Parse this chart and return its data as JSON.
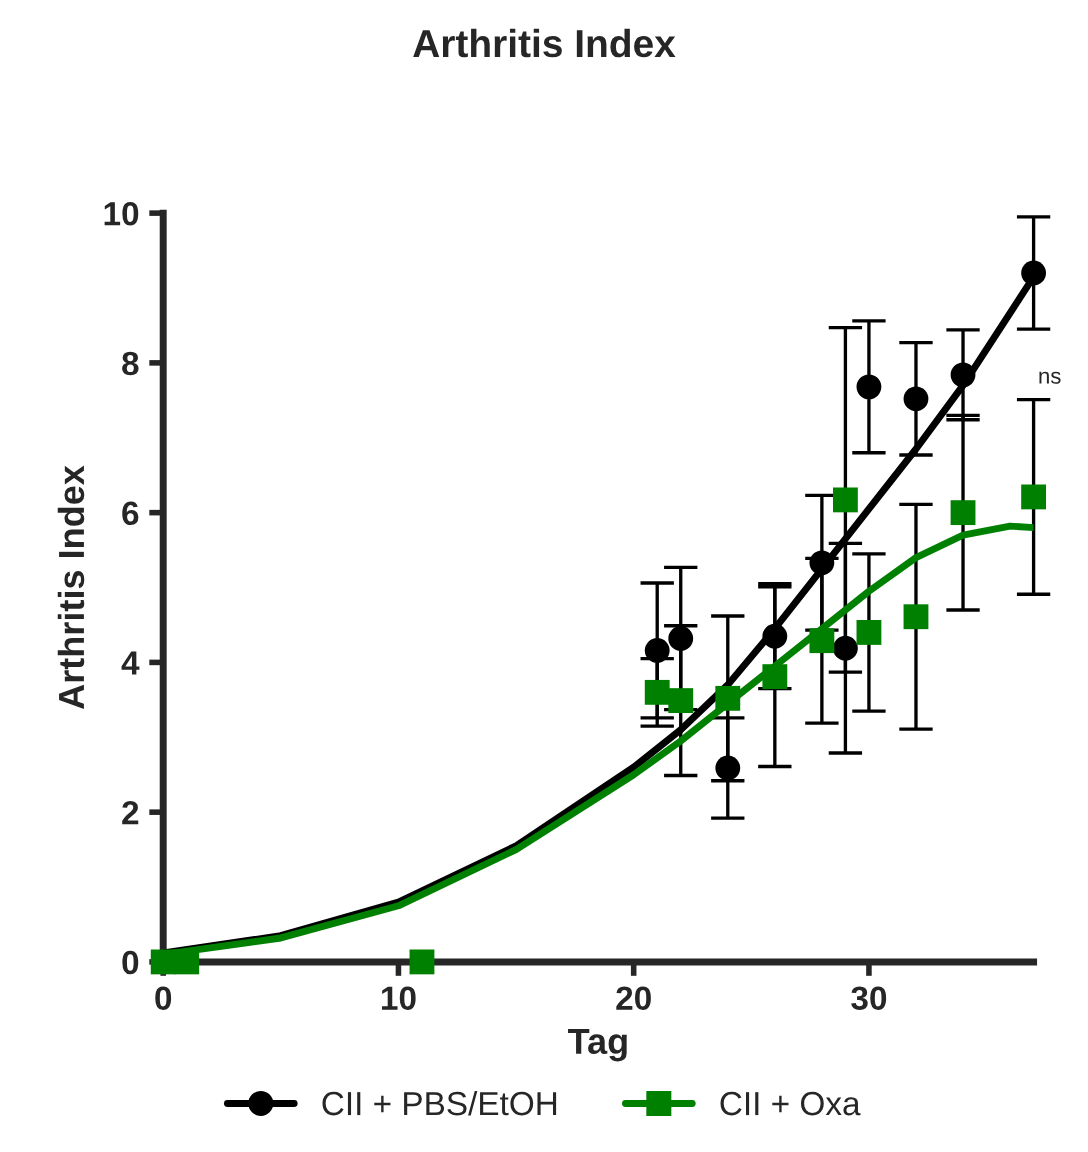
{
  "chart_data": {
    "type": "scatter",
    "title": "Arthritis Index",
    "xlabel": "Tag",
    "ylabel": "Arthritis Index",
    "xlim": [
      0,
      37
    ],
    "ylim": [
      0,
      10
    ],
    "xticks": [
      0,
      10,
      20,
      30
    ],
    "yticks": [
      0,
      2,
      4,
      6,
      8,
      10
    ],
    "grid": false,
    "legend": "bottom",
    "annotations": [
      "ns"
    ],
    "series": [
      {
        "name": "CII + PBS/EtOH",
        "color": "#000000",
        "marker": "circle",
        "x": [
          21,
          22,
          24,
          26,
          28,
          29,
          30,
          32,
          34,
          37
        ],
        "values": [
          4.16,
          4.32,
          2.59,
          4.35,
          5.33,
          4.19,
          7.68,
          7.52,
          7.84,
          9.2
        ],
        "errors": [
          0.9,
          0.95,
          0.67,
          0.7,
          0.9,
          1.4,
          0.88,
          0.75,
          0.6,
          0.75
        ]
      },
      {
        "name": "CII + Oxa",
        "color": "#008000",
        "marker": "square",
        "x": [
          0,
          1,
          11,
          21,
          22,
          24,
          26,
          28,
          29,
          30,
          32,
          34,
          37
        ],
        "values": [
          0,
          0,
          0,
          3.6,
          3.49,
          3.52,
          3.81,
          4.29,
          6.17,
          4.4,
          4.61,
          6.0,
          6.21
        ],
        "errors": [
          null,
          null,
          null,
          0.45,
          1.0,
          1.1,
          1.2,
          1.1,
          2.3,
          1.05,
          1.5,
          1.3,
          1.3
        ]
      },
      {
        "type": "line",
        "color": "#000000",
        "x": [
          0,
          5,
          10,
          15,
          20,
          22,
          24,
          26,
          28,
          30,
          32,
          34,
          37
        ],
        "values": [
          0.12,
          0.35,
          0.8,
          1.55,
          2.6,
          3.1,
          3.7,
          4.45,
          5.25,
          6.05,
          6.85,
          7.7,
          9.15
        ]
      },
      {
        "type": "line",
        "color": "#008000",
        "x": [
          0,
          5,
          10,
          15,
          20,
          22,
          24,
          26,
          28,
          30,
          32,
          34,
          36,
          37
        ],
        "values": [
          0.1,
          0.32,
          0.75,
          1.5,
          2.5,
          2.95,
          3.45,
          3.95,
          4.45,
          4.95,
          5.4,
          5.7,
          5.82,
          5.8
        ]
      }
    ]
  }
}
